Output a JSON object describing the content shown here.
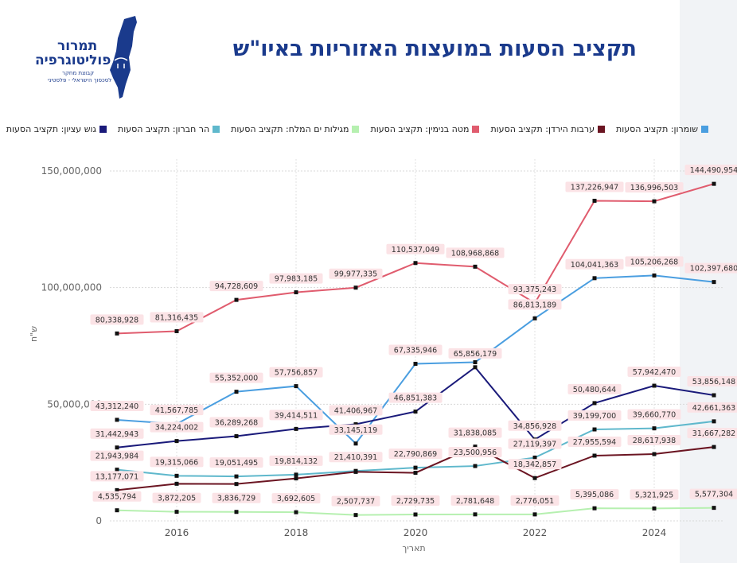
{
  "header": {
    "title": "תקציב הסעות במועצות האזוריות באיו\"ש",
    "logo_line1": "תמרור",
    "logo_line2": "פוליטוגרפיה",
    "logo_line3": "קבוצת מחקר",
    "logo_line4": "לסכסוך הישראלי - פלסטיני"
  },
  "colors": {
    "shomron": "#4a9ee0",
    "arvot": "#6b1522",
    "binyamin": "#e05c6e",
    "megilot": "#b6f0b0",
    "hebron": "#5fb8cc",
    "etzion": "#1a1a7a"
  },
  "chart_data": {
    "type": "line",
    "title": "תקציב הסעות במועצות האזוריות באיו\"ש",
    "xlabel": "תאריך",
    "ylabel": "ש\"ח",
    "x": [
      2015,
      2016,
      2017,
      2018,
      2019,
      2020,
      2021,
      2022,
      2023,
      2024,
      2025
    ],
    "x_ticks": [
      2016,
      2018,
      2020,
      2022,
      2024
    ],
    "y_ticks": [
      0,
      50000000,
      100000000,
      150000000
    ],
    "y_tick_labels": [
      "0",
      "50,000,000",
      "100,000,000",
      "150,000,000"
    ],
    "ylim": [
      0,
      150000000
    ],
    "series": [
      {
        "key": "binyamin",
        "name": "מטה בנימין: תקציב הסעות",
        "values": [
          80338928,
          81316435,
          94728609,
          97983185,
          99977335,
          110537049,
          108968868,
          93375243,
          137226947,
          136996503,
          144490954
        ]
      },
      {
        "key": "shomron",
        "name": "שומרון: תקציב הסעות",
        "values": [
          43312240,
          41567785,
          55352000,
          57756857,
          33145119,
          67335946,
          68000000,
          86813189,
          104041363,
          105206268,
          102397680
        ]
      },
      {
        "key": "etzion",
        "name": "גוש עציון: תקציב הסעות",
        "values": [
          31442943,
          34224002,
          36289268,
          39414511,
          41406967,
          46851383,
          65856179,
          34856928,
          50480644,
          57942470,
          53856148
        ]
      },
      {
        "key": "hebron",
        "name": "הר חברון: תקציב הסעות",
        "values": [
          21943984,
          19315066,
          19051495,
          19814132,
          21410391,
          22790869,
          23500956,
          27119397,
          39199700,
          39660770,
          42661363
        ]
      },
      {
        "key": "arvot",
        "name": "ערבות הירדן: תקציב הסעות",
        "values": [
          13177071,
          15900000,
          15800000,
          18200000,
          21000000,
          20600000,
          31838085,
          18342857,
          27955594,
          28617938,
          31667282
        ]
      },
      {
        "key": "megilot",
        "name": "מגילות ים המלח: תקציב הסעות",
        "values": [
          4535794,
          3872205,
          3836729,
          3692605,
          2507737,
          2729735,
          2781648,
          2776051,
          5395086,
          5321925,
          5577304
        ]
      }
    ],
    "legend_order": [
      "shomron",
      "arvot",
      "binyamin",
      "megilot",
      "hebron",
      "etzion"
    ],
    "data_labels": [
      {
        "series": "binyamin",
        "labels": [
          "80,338,928",
          "81,316,435",
          "94,728,609",
          "97,983,185",
          "99,977,335",
          "110,537,049",
          "108,968,868",
          "93,375,243",
          "137,226,947",
          "136,996,503",
          "144,490,954"
        ]
      },
      {
        "series": "shomron",
        "labels": [
          "43,312,240",
          "41,567,785",
          "55,352,000",
          "57,756,857",
          "33,145,119",
          "67,335,946",
          "",
          "86,813,189",
          "104,041,363",
          "105,206,268",
          "102,397,680"
        ]
      },
      {
        "series": "etzion",
        "labels": [
          "31,442,943",
          "34,224,002",
          "36,289,268",
          "39,414,511",
          "41,406,967",
          "46,851,383",
          "65,856,179",
          "34,856,928",
          "50,480,644",
          "57,942,470",
          "53,856,148"
        ]
      },
      {
        "series": "hebron",
        "labels": [
          "21,943,984",
          "19,315,066",
          "19,051,495",
          "19,814,132",
          "21,410,391",
          "22,790,869",
          "23,500,956",
          "27,119,397",
          "39,199,700",
          "39,660,770",
          "42,661,363"
        ]
      },
      {
        "series": "arvot",
        "labels": [
          "13,177,071",
          "",
          "",
          "",
          "",
          "",
          "31,838,085",
          "18,342,857",
          "27,955,594",
          "28,617,938",
          "31,667,282"
        ]
      },
      {
        "series": "megilot",
        "labels": [
          "4,535,794",
          "3,872,205",
          "3,836,729",
          "3,692,605",
          "2,507,737",
          "2,729,735",
          "2,781,648",
          "2,776,051",
          "5,395,086",
          "5,321,925",
          "5,577,304"
        ]
      }
    ]
  }
}
